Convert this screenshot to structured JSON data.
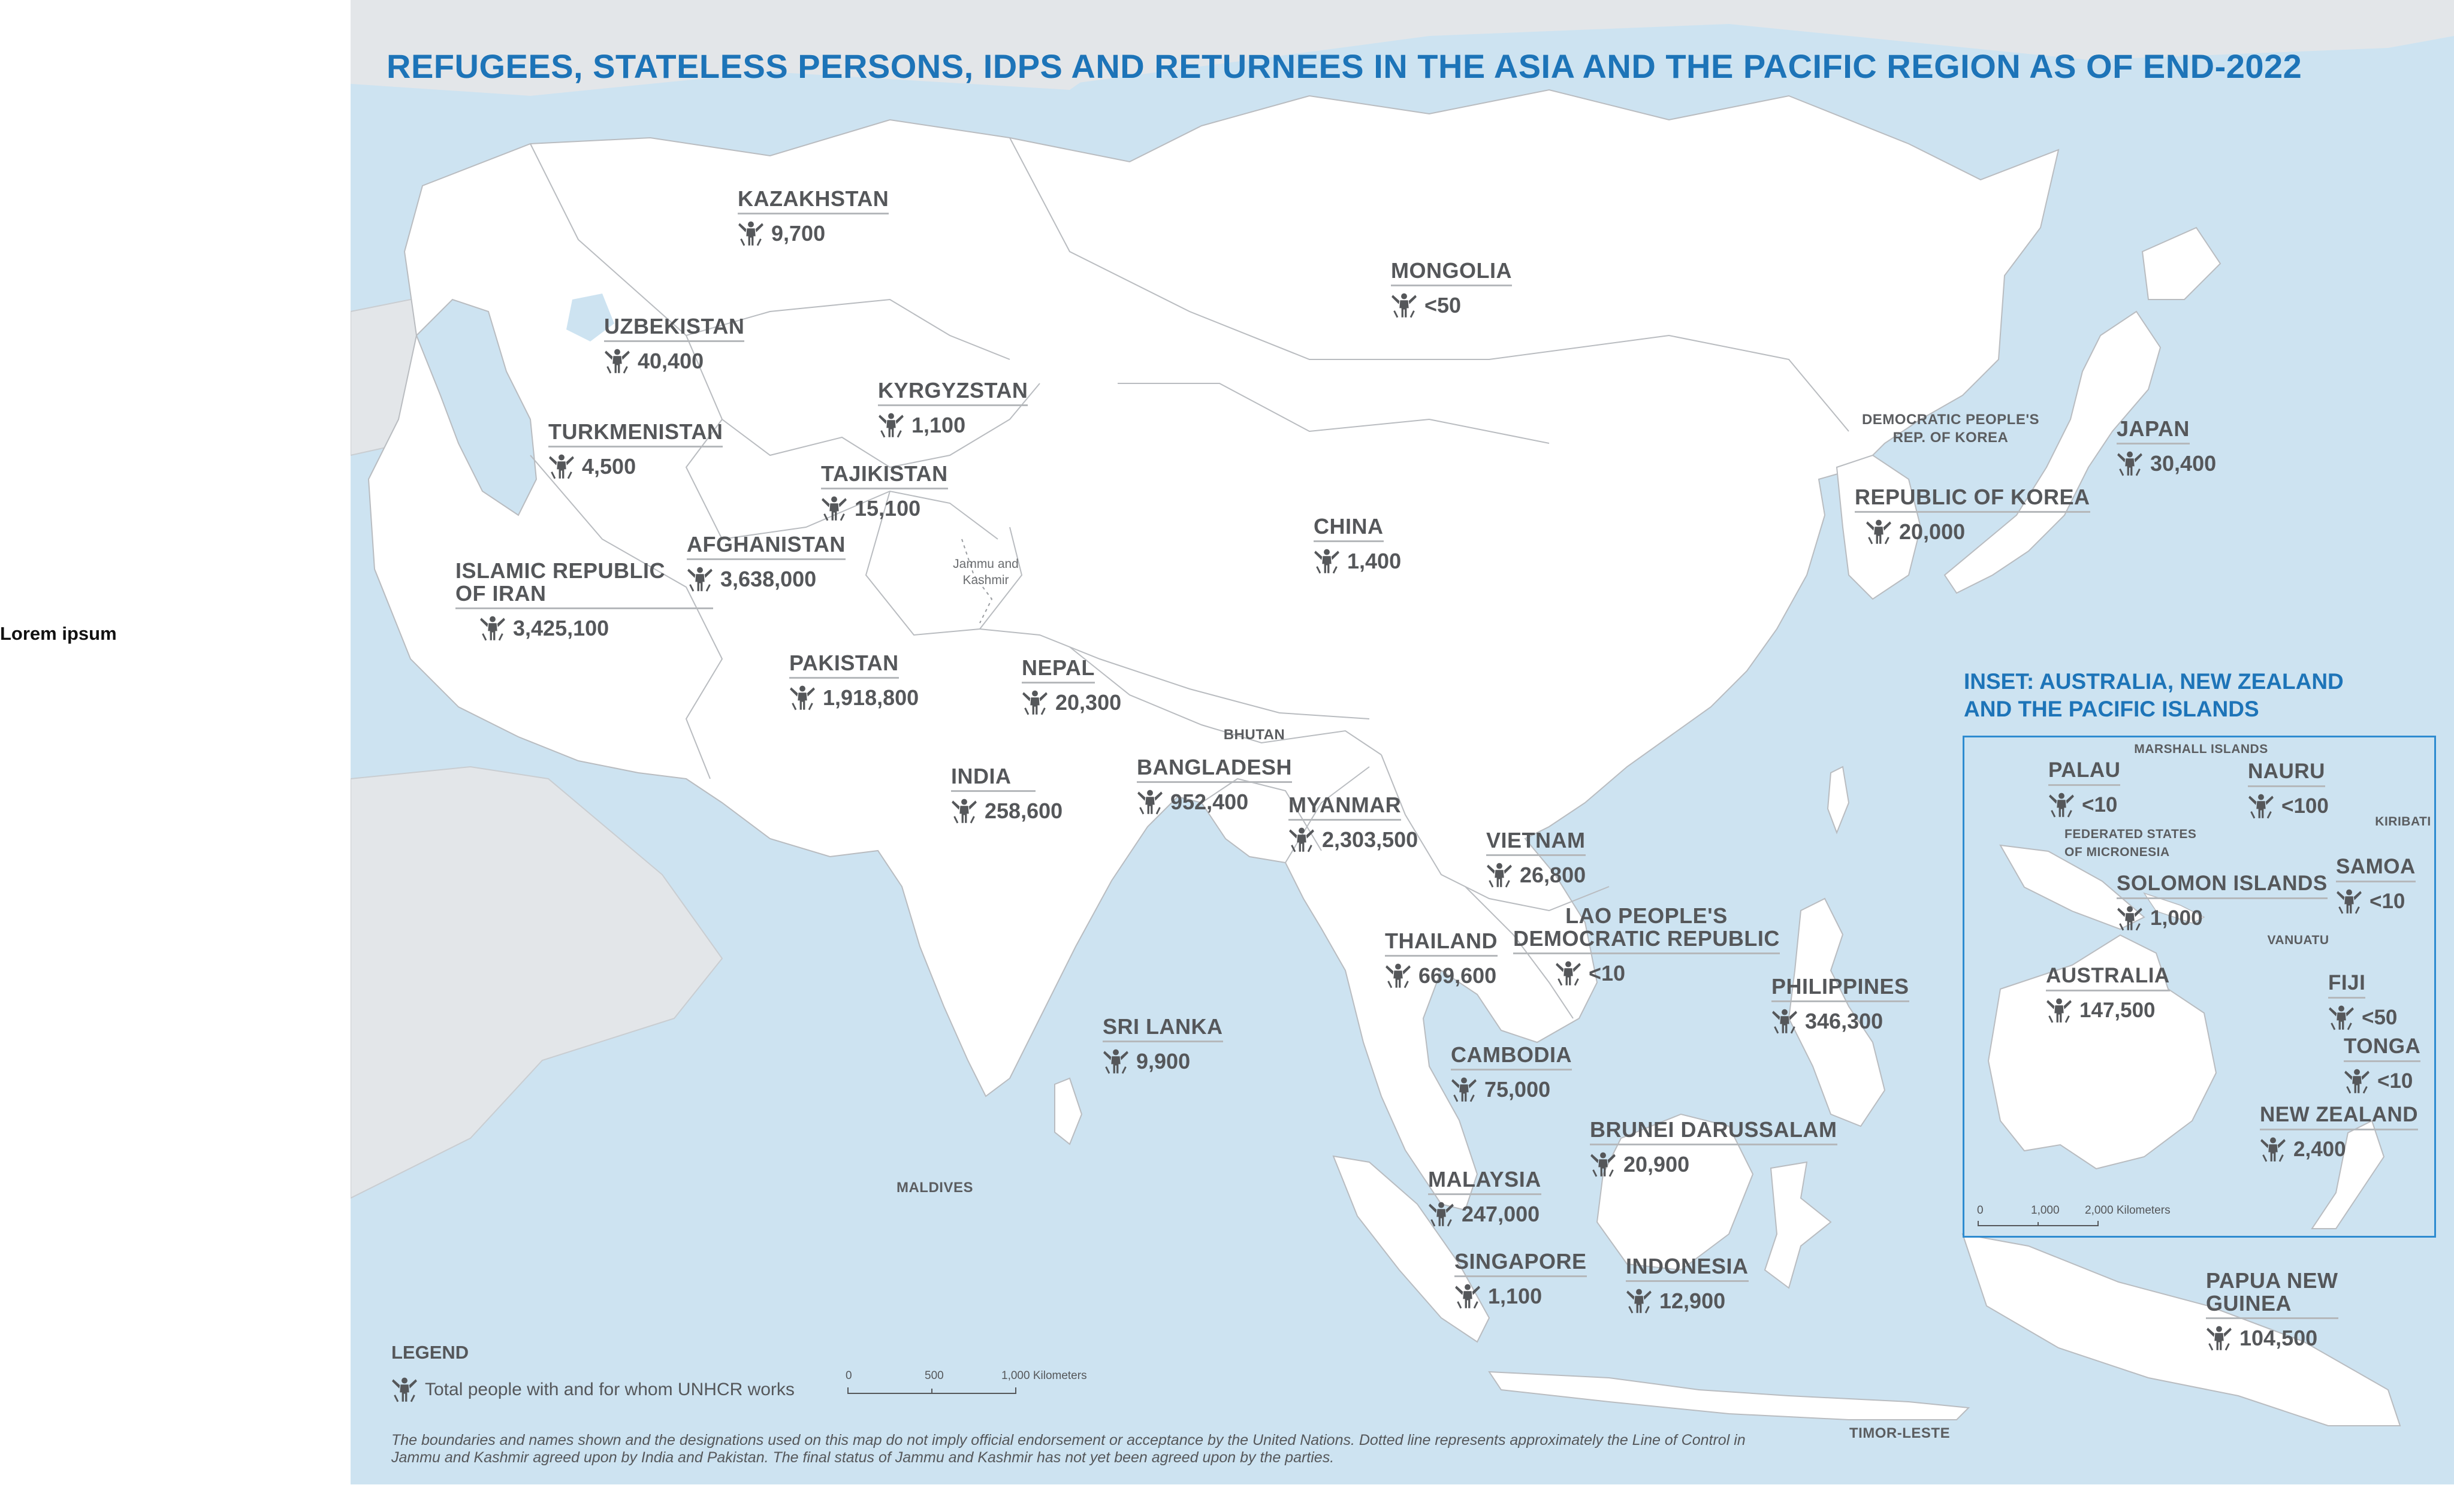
{
  "side_label": "Lorem ipsum",
  "title": "REFUGEES, STATELESS PERSONS, IDPS AND RETURNEES IN THE ASIA AND THE PACIFIC REGION AS OF END-2022",
  "icon": "person-icon",
  "colors": {
    "title": "#1d74b8",
    "water": "#cde3f1",
    "land": "#ffffff",
    "other_land": "#e3e6e9",
    "text": "#55575a"
  },
  "countries": [
    {
      "name": "KAZAKHSTAN",
      "value": "9,700"
    },
    {
      "name": "MONGOLIA",
      "value": "<50"
    },
    {
      "name": "UZBEKISTAN",
      "value": "40,400"
    },
    {
      "name": "KYRGYZSTAN",
      "value": "1,100"
    },
    {
      "name": "TURKMENISTAN",
      "value": "4,500"
    },
    {
      "name": "TAJIKISTAN",
      "value": "15,100"
    },
    {
      "name": "AFGHANISTAN",
      "value": "3,638,000"
    },
    {
      "name": "ISLAMIC REPUBLIC\nOF IRAN",
      "value": "3,425,100"
    },
    {
      "name": "CHINA",
      "value": "1,400"
    },
    {
      "name": "JAPAN",
      "value": "30,400"
    },
    {
      "name": "REPUBLIC OF KOREA",
      "value": "20,000"
    },
    {
      "name": "PAKISTAN",
      "value": "1,918,800"
    },
    {
      "name": "NEPAL",
      "value": "20,300"
    },
    {
      "name": "INDIA",
      "value": "258,600"
    },
    {
      "name": "BANGLADESH",
      "value": "952,400"
    },
    {
      "name": "MYANMAR",
      "value": "2,303,500"
    },
    {
      "name": "VIETNAM",
      "value": "26,800"
    },
    {
      "name": "LAO PEOPLE'S\nDEMOCRATIC REPUBLIC",
      "value": "<10"
    },
    {
      "name": "THAILAND",
      "value": "669,600"
    },
    {
      "name": "SRI LANKA",
      "value": "9,900"
    },
    {
      "name": "PHILIPPINES",
      "value": "346,300"
    },
    {
      "name": "CAMBODIA",
      "value": "75,000"
    },
    {
      "name": "BRUNEI DARUSSALAM",
      "value": "20,900"
    },
    {
      "name": "MALAYSIA",
      "value": "247,000"
    },
    {
      "name": "SINGAPORE",
      "value": "1,100"
    },
    {
      "name": "INDONESIA",
      "value": "12,900"
    },
    {
      "name": "PAPUA NEW\nGUINEA",
      "value": "104,500"
    }
  ],
  "inset_countries": [
    {
      "name": "PALAU",
      "value": "<10"
    },
    {
      "name": "NAURU",
      "value": "<100"
    },
    {
      "name": "SAMOA",
      "value": "<10"
    },
    {
      "name": "SOLOMON ISLANDS",
      "value": "1,000"
    },
    {
      "name": "AUSTRALIA",
      "value": "147,500"
    },
    {
      "name": "FIJI",
      "value": "<50"
    },
    {
      "name": "TONGA",
      "value": "<10"
    },
    {
      "name": "NEW ZEALAND",
      "value": "2,400"
    }
  ],
  "unlabeled": {
    "dprk": "DEMOCRATIC PEOPLE'S\nREP. OF KOREA",
    "bhutan": "BHUTAN",
    "maldives": "MALDIVES",
    "timor": "TIMOR-LESTE",
    "jk": "Jammu and\nKashmir",
    "marshall": "MARSHALL ISLANDS",
    "kiribati": "KIRIBATI",
    "micronesia": "FEDERATED STATES\nOF MICRONESIA",
    "vanuatu": "VANUATU"
  },
  "inset": {
    "title": "INSET: AUSTRALIA, NEW ZEALAND\nAND THE PACIFIC ISLANDS",
    "scale": {
      "t0": "0",
      "t1": "1,000",
      "t2": "2,000 Kilometers"
    }
  },
  "legend": {
    "title": "LEGEND",
    "item": "Total people with and for whom UNHCR works",
    "scale": {
      "t0": "0",
      "t1": "500",
      "t2": "1,000  Kilometers"
    }
  },
  "disclaimer": "The boundaries and names shown and the designations used on this map do not imply official endorsement or acceptance by the United Nations. Dotted line represents approximately the Line of Control in Jammu and Kashmir agreed upon by India and Pakistan. The final status of Jammu and Kashmir has not yet been agreed upon by the parties."
}
